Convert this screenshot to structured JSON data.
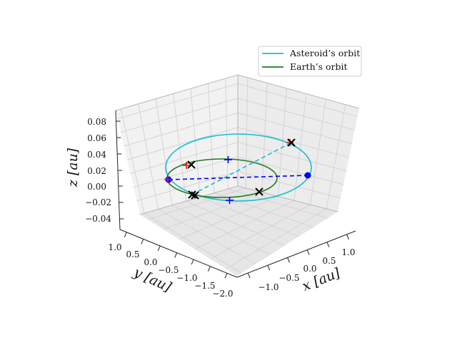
{
  "chart_data": {
    "type": "line",
    "projection": "3d",
    "title": "",
    "xlabel": "$x$ [au]",
    "ylabel": "$y$ [au]",
    "zlabel": "$z$ [au]",
    "xlabel_display": "x [au]",
    "ylabel_display": "y [au]",
    "zlabel_display": "z [au]",
    "xlim": [
      -1.5,
      1.5
    ],
    "ylim": [
      -2.0,
      1.1
    ],
    "zlim": [
      -0.045,
      0.09
    ],
    "x_ticks": [
      "−1.0",
      "−0.5",
      "0.0",
      "0.5",
      "1.0"
    ],
    "y_ticks": [
      "1.0",
      "0.5",
      "0.0",
      "−0.5",
      "−1.0",
      "−1.5",
      "−2.0"
    ],
    "z_ticks": [
      "0.08",
      "0.06",
      "0.04",
      "0.02",
      "0.00",
      "−0.02",
      "−0.04"
    ],
    "grid": true,
    "legend_position": "top-right",
    "legend": [
      "Asteroid’s orbit",
      "Earth’s orbit"
    ],
    "colors": {
      "asteroid": "#17becf",
      "earth": "#1f7a1f",
      "node_line": "#0000ff",
      "marker_x": "#000000",
      "marker_red": "#e31a1c",
      "marker_plus": "#0000ff",
      "pane": "#f2f2f2",
      "grid": "#d0d0d0"
    },
    "series": [
      {
        "name": "Asteroid’s orbit",
        "kind": "ellipse",
        "a": 1.3,
        "e": 0.23,
        "inclination_deg": 2.5,
        "node_deg": 180
      },
      {
        "name": "Earth’s orbit",
        "kind": "circle",
        "radius": 1.0,
        "z": 0.0
      }
    ],
    "points": {
      "node_line": [
        [
          -1.0,
          0.0,
          0.0
        ],
        [
          1.6,
          0.0,
          0.0
        ]
      ],
      "node_markers": [
        [
          -1.0,
          0.0,
          0.0
        ],
        [
          1.6,
          0.0,
          0.0
        ]
      ],
      "dashed_asteroid_line": [
        [
          -0.85,
          -0.7,
          0.0
        ],
        [
          1.0,
          0.95,
          0.05
        ]
      ],
      "x_markers": [
        [
          -0.85,
          0.55,
          0.0
        ],
        [
          1.0,
          0.95,
          0.05
        ],
        [
          0.45,
          -0.85,
          0.0
        ],
        [
          -0.85,
          -0.7,
          0.0
        ]
      ],
      "red_plus_markers": [
        [
          -0.9,
          0.5,
          0.0
        ],
        [
          1.0,
          0.95,
          0.05
        ]
      ],
      "blue_plus_markers": [
        [
          0.0,
          0.82,
          0.0
        ],
        [
          0.0,
          -1.22,
          0.0
        ]
      ]
    }
  }
}
